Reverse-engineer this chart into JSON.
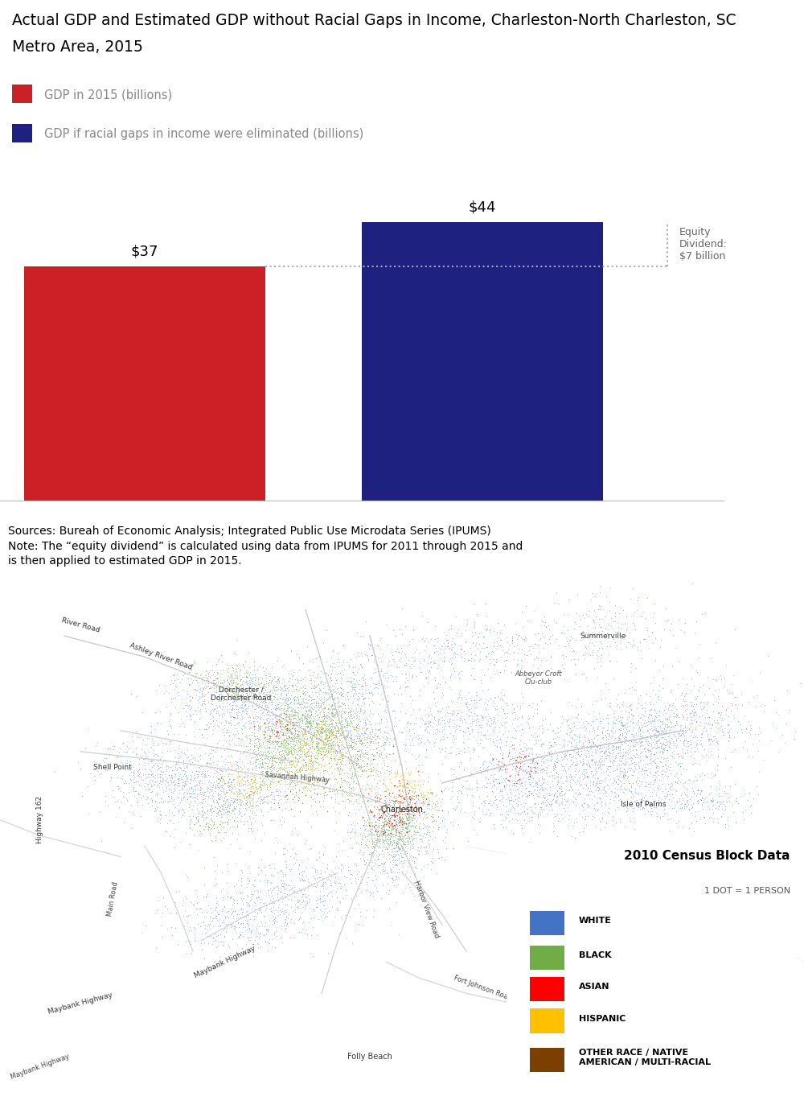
{
  "title_line1": "Actual GDP and Estimated GDP without Racial Gaps in Income, Charleston-North Charleston, SC",
  "title_line2": "Metro Area, 2015",
  "bar1_label": "GDP in 2015 (billions)",
  "bar2_label": "GDP if racial gaps in income were eliminated (billions)",
  "bar1_value": 37,
  "bar2_value": 44,
  "bar1_color": "#CC2027",
  "bar2_color": "#1E2180",
  "bar1_text": "$37",
  "bar2_text": "$44",
  "equity_label": "Equity\nDividend:\n$7 billion",
  "sources_text": "Sources: Bureah of Economic Analysis; Integrated Public Use Microdata Series (IPUMS)\nNote: The “equity dividend” is calculated using data from IPUMS for 2011 through 2015 and\nis then applied to estimated GDP in 2015.",
  "legend_title": "2010 Census Block Data",
  "legend_subtitle": "1 DOT = 1 PERSON",
  "legend_items": [
    {
      "label": "WHITE",
      "color": "#4472C4"
    },
    {
      "label": "BLACK",
      "color": "#70AD47"
    },
    {
      "label": "ASIAN",
      "color": "#FF0000"
    },
    {
      "label": "HISPANIC",
      "color": "#FFC000"
    },
    {
      "label": "OTHER RACE / NATIVE\nAMERICAN / MULTI-RACIAL",
      "color": "#7B3F00"
    }
  ],
  "bg_color": "#FFFFFF",
  "axis_line_color": "#BBBBBB",
  "dashed_line_color": "#AAAAAA",
  "title_fontsize": 13.5,
  "label_fontsize": 10.5,
  "sources_fontsize": 10
}
